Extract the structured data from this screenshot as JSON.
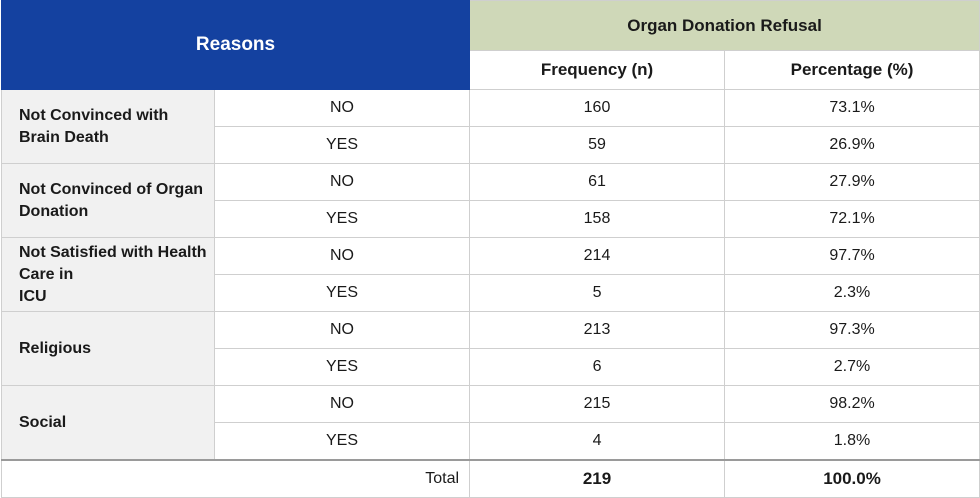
{
  "chart_data": {
    "type": "table",
    "header": {
      "reasons": "Reasons",
      "group": "Organ Donation Refusal",
      "frequency": "Frequency (n)",
      "percentage": "Percentage (%)"
    },
    "rows": [
      {
        "reason_lines": [
          "Not Convinced with",
          "Brain Death"
        ],
        "answers": [
          {
            "answer": "NO",
            "n": "160",
            "pct": "73.1%"
          },
          {
            "answer": "YES",
            "n": "59",
            "pct": "26.9%"
          }
        ]
      },
      {
        "reason_lines": [
          "Not Convinced of Organ",
          "Donation"
        ],
        "answers": [
          {
            "answer": "NO",
            "n": "61",
            "pct": "27.9%"
          },
          {
            "answer": "YES",
            "n": "158",
            "pct": "72.1%"
          }
        ]
      },
      {
        "reason_lines": [
          "Not Satisfied with Health",
          "Care in",
          "ICU"
        ],
        "answers": [
          {
            "answer": "NO",
            "n": "214",
            "pct": "97.7%"
          },
          {
            "answer": "YES",
            "n": "5",
            "pct": "2.3%"
          }
        ]
      },
      {
        "reason_lines": [
          "Religious"
        ],
        "answers": [
          {
            "answer": "NO",
            "n": "213",
            "pct": "97.3%"
          },
          {
            "answer": "YES",
            "n": "6",
            "pct": "2.7%"
          }
        ]
      },
      {
        "reason_lines": [
          "Social"
        ],
        "answers": [
          {
            "answer": "NO",
            "n": "215",
            "pct": "98.2%"
          },
          {
            "answer": "YES",
            "n": "4",
            "pct": "1.8%"
          }
        ]
      }
    ],
    "total": {
      "label": "Total",
      "n": "219",
      "pct": "100.0%"
    },
    "colors": {
      "reasons_header_bg": "#1441a0",
      "group_header_bg": "#cfd8b8",
      "reason_cell_bg": "#f1f1f1"
    }
  }
}
